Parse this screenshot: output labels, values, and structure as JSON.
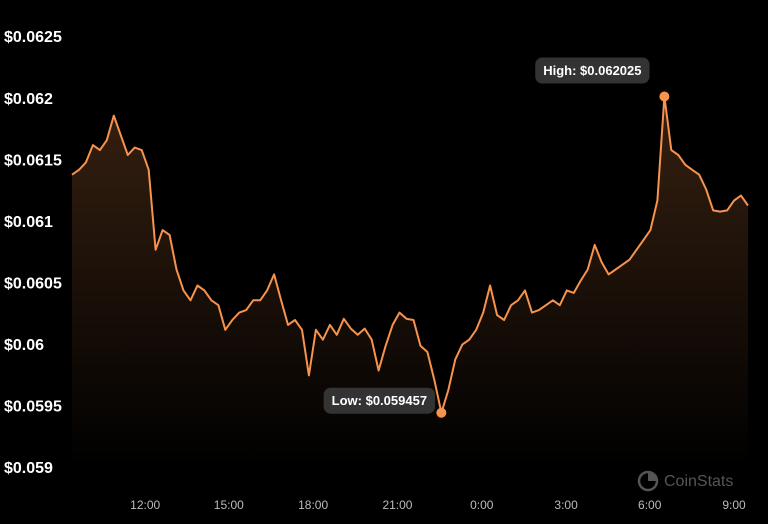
{
  "chart_data": {
    "type": "line",
    "values": [
      0.06139,
      0.06143,
      0.06149,
      0.06163,
      0.06159,
      0.06167,
      0.06187,
      0.06171,
      0.06155,
      0.06161,
      0.06159,
      0.06143,
      0.06078,
      0.06094,
      0.0609,
      0.06062,
      0.06045,
      0.06037,
      0.06049,
      0.06045,
      0.06037,
      0.06033,
      0.06013,
      0.06021,
      0.06027,
      0.06029,
      0.06037,
      0.06037,
      0.06045,
      0.06058,
      0.06037,
      0.06017,
      0.06021,
      0.06013,
      0.05976,
      0.06013,
      0.06005,
      0.06017,
      0.06009,
      0.06022,
      0.06014,
      0.06009,
      0.06014,
      0.06005,
      0.0598,
      0.06,
      0.06017,
      0.06027,
      0.06022,
      0.06021,
      0.06,
      0.05995,
      0.05972,
      0.059457,
      0.05964,
      0.05989,
      0.06001,
      0.06005,
      0.06013,
      0.06027,
      0.06049,
      0.06025,
      0.06021,
      0.06033,
      0.06037,
      0.06045,
      0.06027,
      0.06029,
      0.06033,
      0.06037,
      0.06033,
      0.06045,
      0.06043,
      0.06053,
      0.06062,
      0.06082,
      0.06068,
      0.06058,
      0.06062,
      0.06066,
      0.0607,
      0.06078,
      0.06086,
      0.06094,
      0.06118,
      0.062025,
      0.06159,
      0.06155,
      0.06147,
      0.06143,
      0.06139,
      0.06127,
      0.0611,
      0.06109,
      0.0611,
      0.06118,
      0.06122,
      0.06114
    ],
    "color": "#f7934c",
    "xlim": [
      0,
      97
    ],
    "xticks": [
      {
        "value": 10.5,
        "label": "12:00"
      },
      {
        "value": 22.5,
        "label": "15:00"
      },
      {
        "value": 34.6,
        "label": "18:00"
      },
      {
        "value": 46.7,
        "label": "21:00"
      },
      {
        "value": 58.8,
        "label": "0:00"
      },
      {
        "value": 70.9,
        "label": "3:00"
      },
      {
        "value": 82.9,
        "label": "6:00"
      },
      {
        "value": 95.0,
        "label": "9:00"
      }
    ],
    "ylim": [
      0.059,
      0.0625
    ],
    "yticks": [
      {
        "value": 0.059,
        "label": "$0.059"
      },
      {
        "value": 0.0595,
        "label": "$0.0595"
      },
      {
        "value": 0.06,
        "label": "$0.06"
      },
      {
        "value": 0.0605,
        "label": "$0.0605"
      },
      {
        "value": 0.061,
        "label": "$0.061"
      },
      {
        "value": 0.0615,
        "label": "$0.0615"
      },
      {
        "value": 0.062,
        "label": "$0.062"
      },
      {
        "value": 0.0625,
        "label": "$0.0625"
      }
    ],
    "high_label": "High: $0.062025",
    "low_label": "Low: $0.059457",
    "watermark": "CoinStats"
  }
}
